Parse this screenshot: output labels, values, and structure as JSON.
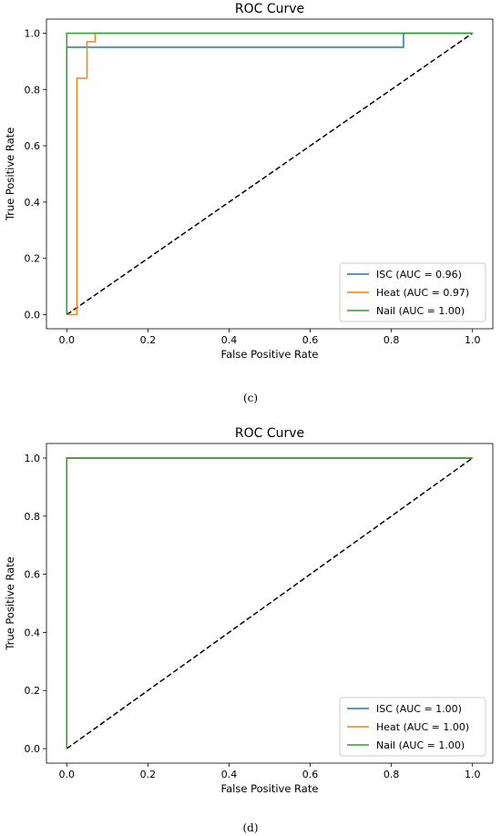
{
  "chart_data": [
    {
      "type": "line",
      "title": "ROC Curve",
      "xlabel": "False Positive Rate",
      "ylabel": "True Positive Rate",
      "xlim": [
        -0.05,
        1.05
      ],
      "ylim": [
        -0.05,
        1.05
      ],
      "xticks": [
        "0.0",
        "0.2",
        "0.4",
        "0.6",
        "0.8",
        "1.0"
      ],
      "yticks": [
        "0.0",
        "0.2",
        "0.4",
        "0.6",
        "0.8",
        "1.0"
      ],
      "grid": false,
      "legend_position": "bottom-right",
      "caption": "(c)",
      "series": [
        {
          "name": "ISC (AUC = 0.96)",
          "color": "#1f77b4",
          "x": [
            0,
            0,
            0.83,
            0.83,
            1
          ],
          "y": [
            0,
            0.95,
            0.95,
            1,
            1
          ]
        },
        {
          "name": "Heat (AUC = 0.97)",
          "color": "#ff7f0e",
          "x": [
            0,
            0.025,
            0.025,
            0.05,
            0.05,
            0.07,
            0.07,
            1
          ],
          "y": [
            0,
            0,
            0.84,
            0.84,
            0.97,
            0.97,
            1,
            1
          ]
        },
        {
          "name": "Nail (AUC = 1.00)",
          "color": "#2ca02c",
          "x": [
            0,
            0,
            1
          ],
          "y": [
            0,
            1,
            1
          ]
        }
      ],
      "reference_line": {
        "x": [
          0,
          1
        ],
        "y": [
          0,
          1
        ],
        "color": "#000000",
        "style": "dashed"
      }
    },
    {
      "type": "line",
      "title": "ROC Curve",
      "xlabel": "False Positive Rate",
      "ylabel": "True Positive Rate",
      "xlim": [
        -0.05,
        1.05
      ],
      "ylim": [
        -0.05,
        1.05
      ],
      "xticks": [
        "0.0",
        "0.2",
        "0.4",
        "0.6",
        "0.8",
        "1.0"
      ],
      "yticks": [
        "0.0",
        "0.2",
        "0.4",
        "0.6",
        "0.8",
        "1.0"
      ],
      "grid": false,
      "legend_position": "bottom-right",
      "caption": "(d)",
      "series": [
        {
          "name": "ISC (AUC = 1.00)",
          "color": "#1f77b4",
          "x": [
            0,
            0,
            1
          ],
          "y": [
            0,
            1,
            1
          ]
        },
        {
          "name": "Heat (AUC = 1.00)",
          "color": "#ff7f0e",
          "x": [
            0,
            0,
            1
          ],
          "y": [
            0,
            1,
            1
          ]
        },
        {
          "name": "Nail (AUC = 1.00)",
          "color": "#2ca02c",
          "x": [
            0,
            0,
            1
          ],
          "y": [
            0,
            1,
            1
          ]
        }
      ],
      "reference_line": {
        "x": [
          0,
          1
        ],
        "y": [
          0,
          1
        ],
        "color": "#000000",
        "style": "dashed"
      }
    }
  ]
}
